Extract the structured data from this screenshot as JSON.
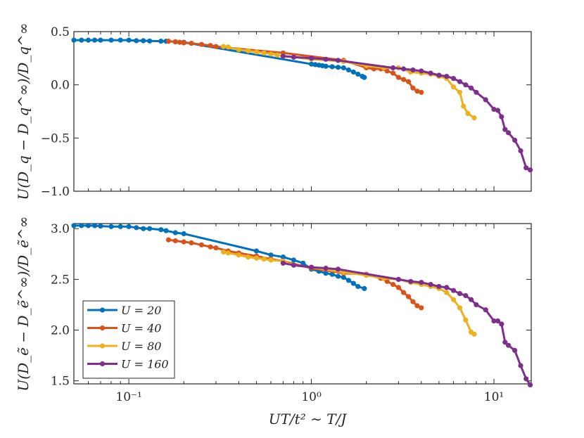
{
  "figure": {
    "xlabel": "UT/t² ∼ T/J",
    "xscale": "log",
    "xlim": [
      0.05,
      16
    ],
    "xticks": [
      0.1,
      1,
      10
    ],
    "xtick_labels": [
      "10⁻¹",
      "10⁰",
      "10¹"
    ]
  },
  "legend": {
    "placement": "lower-left of bottom panel",
    "entries": [
      "U = 20",
      "U = 40",
      "U = 80",
      "U = 160"
    ]
  },
  "series_colors": [
    "#0072BD",
    "#D95319",
    "#EDB120",
    "#7E2F8E"
  ],
  "chart_data": [
    {
      "type": "line",
      "panel": "top",
      "ylabel": "U(D_q − D_q^∞)/D_q^∞",
      "ylim": [
        -1.0,
        0.5
      ],
      "yticks": [
        0.5,
        0.0,
        -0.5,
        -1.0
      ],
      "ytick_labels": [
        "0.5",
        "0.0",
        "−0.5",
        "−1.0"
      ],
      "series": [
        {
          "name": "U = 20",
          "points": [
            [
              0.05,
              0.42
            ],
            [
              0.055,
              0.42
            ],
            [
              0.06,
              0.42
            ],
            [
              0.065,
              0.42
            ],
            [
              0.07,
              0.42
            ],
            [
              0.08,
              0.42
            ],
            [
              0.09,
              0.42
            ],
            [
              0.1,
              0.42
            ],
            [
              0.11,
              0.415
            ],
            [
              0.12,
              0.415
            ],
            [
              0.13,
              0.412
            ],
            [
              0.15,
              0.41
            ],
            [
              0.16,
              0.41
            ],
            [
              0.18,
              0.405
            ],
            [
              0.2,
              0.4
            ],
            [
              1.0,
              0.195
            ],
            [
              1.05,
              0.19
            ],
            [
              1.1,
              0.185
            ],
            [
              1.15,
              0.18
            ],
            [
              1.2,
              0.175
            ],
            [
              1.3,
              0.17
            ],
            [
              1.4,
              0.165
            ],
            [
              1.5,
              0.16
            ],
            [
              1.6,
              0.14
            ],
            [
              1.7,
              0.12
            ],
            [
              1.8,
              0.1
            ],
            [
              1.9,
              0.08
            ],
            [
              1.95,
              0.07
            ]
          ]
        },
        {
          "name": "U = 40",
          "points": [
            [
              0.165,
              0.41
            ],
            [
              0.18,
              0.405
            ],
            [
              0.19,
              0.4
            ],
            [
              0.2,
              0.395
            ],
            [
              0.22,
              0.39
            ],
            [
              0.25,
              0.38
            ],
            [
              0.28,
              0.37
            ],
            [
              0.3,
              0.36
            ],
            [
              0.7,
              0.3
            ],
            [
              1.5,
              0.23
            ],
            [
              2.0,
              0.16
            ],
            [
              2.2,
              0.15
            ],
            [
              2.4,
              0.15
            ],
            [
              2.6,
              0.13
            ],
            [
              2.8,
              0.11
            ],
            [
              3.0,
              0.07
            ],
            [
              3.2,
              0.05
            ],
            [
              3.4,
              0.03
            ],
            [
              3.6,
              -0.03
            ],
            [
              3.8,
              -0.06
            ],
            [
              4.0,
              -0.07
            ]
          ]
        },
        {
          "name": "U = 80",
          "points": [
            [
              0.33,
              0.36
            ],
            [
              0.35,
              0.355
            ],
            [
              0.4,
              0.33
            ],
            [
              0.45,
              0.32
            ],
            [
              0.5,
              0.31
            ],
            [
              0.55,
              0.3
            ],
            [
              0.6,
              0.29
            ],
            [
              0.65,
              0.28
            ],
            [
              0.7,
              0.27
            ],
            [
              0.8,
              0.26
            ],
            [
              1.0,
              0.24
            ],
            [
              1.5,
              0.22
            ],
            [
              2.0,
              0.18
            ],
            [
              2.5,
              0.16
            ],
            [
              3.0,
              0.16
            ],
            [
              3.5,
              0.12
            ],
            [
              4.0,
              0.11
            ],
            [
              4.5,
              0.1
            ],
            [
              5.0,
              0.08
            ],
            [
              5.5,
              0.06
            ],
            [
              6.0,
              -0.02
            ],
            [
              6.5,
              -0.07
            ],
            [
              6.8,
              -0.2
            ],
            [
              7.2,
              -0.27
            ],
            [
              7.8,
              -0.31
            ]
          ]
        },
        {
          "name": "U = 160",
          "points": [
            [
              0.7,
              0.27
            ],
            [
              0.8,
              0.26
            ],
            [
              1.0,
              0.25
            ],
            [
              1.2,
              0.24
            ],
            [
              1.4,
              0.23
            ],
            [
              2.8,
              0.16
            ],
            [
              3.2,
              0.15
            ],
            [
              3.6,
              0.14
            ],
            [
              4.0,
              0.13
            ],
            [
              4.5,
              0.11
            ],
            [
              5.0,
              0.09
            ],
            [
              5.5,
              0.08
            ],
            [
              6.0,
              0.06
            ],
            [
              6.5,
              0.03
            ],
            [
              7.0,
              0.0
            ],
            [
              7.5,
              -0.03
            ],
            [
              8.0,
              -0.07
            ],
            [
              9.0,
              -0.14
            ],
            [
              10.0,
              -0.23
            ],
            [
              10.5,
              -0.24
            ],
            [
              11.0,
              -0.3
            ],
            [
              11.5,
              -0.42
            ],
            [
              12.0,
              -0.45
            ],
            [
              13.0,
              -0.52
            ],
            [
              14.0,
              -0.62
            ],
            [
              15.0,
              -0.78
            ],
            [
              15.8,
              -0.8
            ]
          ]
        }
      ]
    },
    {
      "type": "line",
      "panel": "bottom",
      "ylabel": "U(D_ẽ − D_ẽ^∞)/D_ẽ^∞",
      "ylim": [
        1.47,
        3.05
      ],
      "yticks": [
        3.0,
        2.5,
        2.0,
        1.5
      ],
      "ytick_labels": [
        "3.0",
        "2.5",
        "2.0",
        "1.5"
      ],
      "series": [
        {
          "name": "U = 20",
          "points": [
            [
              0.05,
              3.03
            ],
            [
              0.055,
              3.03
            ],
            [
              0.06,
              3.03
            ],
            [
              0.065,
              3.03
            ],
            [
              0.07,
              3.025
            ],
            [
              0.08,
              3.02
            ],
            [
              0.09,
              3.02
            ],
            [
              0.1,
              3.02
            ],
            [
              0.11,
              3.01
            ],
            [
              0.12,
              3.0
            ],
            [
              0.13,
              3.0
            ],
            [
              0.15,
              2.99
            ],
            [
              0.16,
              2.98
            ],
            [
              0.18,
              2.96
            ],
            [
              0.2,
              2.95
            ],
            [
              0.5,
              2.78
            ],
            [
              0.6,
              2.74
            ],
            [
              0.7,
              2.72
            ],
            [
              0.8,
              2.69
            ],
            [
              0.9,
              2.66
            ],
            [
              1.0,
              2.6
            ],
            [
              1.1,
              2.58
            ],
            [
              1.2,
              2.56
            ],
            [
              1.3,
              2.55
            ],
            [
              1.4,
              2.53
            ],
            [
              1.5,
              2.52
            ],
            [
              1.6,
              2.49
            ],
            [
              1.7,
              2.46
            ],
            [
              1.8,
              2.43
            ],
            [
              1.95,
              2.41
            ]
          ]
        },
        {
          "name": "U = 40",
          "points": [
            [
              0.165,
              2.89
            ],
            [
              0.18,
              2.88
            ],
            [
              0.2,
              2.87
            ],
            [
              0.22,
              2.86
            ],
            [
              0.25,
              2.84
            ],
            [
              0.28,
              2.82
            ],
            [
              0.3,
              2.81
            ],
            [
              0.35,
              2.78
            ],
            [
              0.4,
              2.76
            ],
            [
              0.5,
              2.73
            ],
            [
              0.6,
              2.7
            ],
            [
              0.7,
              2.68
            ],
            [
              1.0,
              2.61
            ],
            [
              1.5,
              2.56
            ],
            [
              2.0,
              2.55
            ],
            [
              2.4,
              2.51
            ],
            [
              2.6,
              2.48
            ],
            [
              2.8,
              2.45
            ],
            [
              3.0,
              2.42
            ],
            [
              3.2,
              2.37
            ],
            [
              3.4,
              2.33
            ],
            [
              3.6,
              2.28
            ],
            [
              3.8,
              2.24
            ],
            [
              4.0,
              2.22
            ]
          ]
        },
        {
          "name": "U = 80",
          "points": [
            [
              0.33,
              2.77
            ],
            [
              0.35,
              2.76
            ],
            [
              0.4,
              2.74
            ],
            [
              0.45,
              2.72
            ],
            [
              0.5,
              2.71
            ],
            [
              0.55,
              2.7
            ],
            [
              0.6,
              2.69
            ],
            [
              0.7,
              2.68
            ],
            [
              0.8,
              2.64
            ],
            [
              1.0,
              2.62
            ],
            [
              1.5,
              2.57
            ],
            [
              2.0,
              2.54
            ],
            [
              2.5,
              2.51
            ],
            [
              3.0,
              2.5
            ],
            [
              3.5,
              2.47
            ],
            [
              4.0,
              2.45
            ],
            [
              4.5,
              2.43
            ],
            [
              5.0,
              2.41
            ],
            [
              5.5,
              2.37
            ],
            [
              6.0,
              2.3
            ],
            [
              6.5,
              2.22
            ],
            [
              7.0,
              2.1
            ],
            [
              7.5,
              1.98
            ],
            [
              7.8,
              1.96
            ]
          ]
        },
        {
          "name": "U = 160",
          "points": [
            [
              0.7,
              2.66
            ],
            [
              0.8,
              2.64
            ],
            [
              1.0,
              2.62
            ],
            [
              1.2,
              2.61
            ],
            [
              1.4,
              2.6
            ],
            [
              3.0,
              2.5
            ],
            [
              3.5,
              2.48
            ],
            [
              4.0,
              2.47
            ],
            [
              4.5,
              2.45
            ],
            [
              5.0,
              2.43
            ],
            [
              5.5,
              2.42
            ],
            [
              6.0,
              2.39
            ],
            [
              6.5,
              2.36
            ],
            [
              7.0,
              2.34
            ],
            [
              7.5,
              2.3
            ],
            [
              8.0,
              2.25
            ],
            [
              9.0,
              2.2
            ],
            [
              10.0,
              2.09
            ],
            [
              10.5,
              2.09
            ],
            [
              11.0,
              2.06
            ],
            [
              11.5,
              1.88
            ],
            [
              12.0,
              1.85
            ],
            [
              13.0,
              1.8
            ],
            [
              14.0,
              1.65
            ],
            [
              15.0,
              1.52
            ],
            [
              15.8,
              1.46
            ]
          ]
        }
      ]
    }
  ]
}
